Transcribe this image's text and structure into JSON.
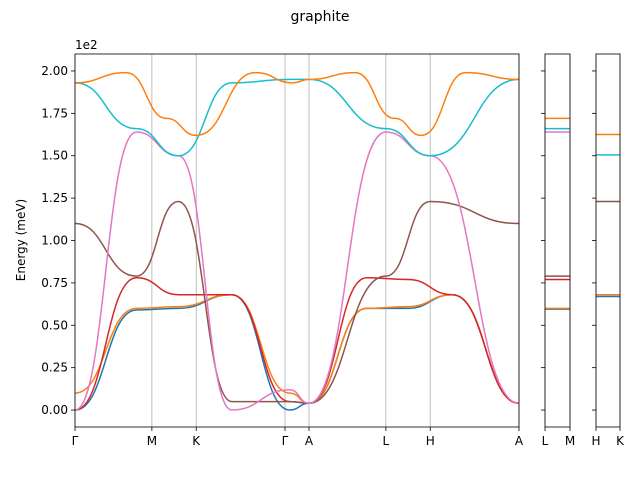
{
  "chart_data": {
    "type": "line",
    "title": "graphite",
    "ylabel": "Energy (meV)",
    "y_multiplier": "1e2",
    "ylim": [
      -0.1,
      2.1
    ],
    "yticks": [
      0.0,
      0.25,
      0.5,
      0.75,
      1.0,
      1.25,
      1.5,
      1.75,
      2.0
    ],
    "ytick_labels": [
      "0.00",
      "0.25",
      "0.50",
      "0.75",
      "1.00",
      "1.25",
      "1.50",
      "1.75",
      "2.00"
    ],
    "grid": "vertical lines at high-symmetry points",
    "panels": [
      {
        "segments": [
          {
            "from": "Γ",
            "to": "M",
            "weight": 0.1719
          },
          {
            "from": "M",
            "to": "K",
            "weight": 0.0992
          },
          {
            "from": "K",
            "to": "Γ",
            "weight": 0.1985
          },
          {
            "from": "Γ",
            "to": "A",
            "weight": 0.0536
          },
          {
            "from": "A",
            "to": "L",
            "weight": 0.1719
          },
          {
            "from": "L",
            "to": "H",
            "weight": 0.0992
          },
          {
            "from": "H",
            "to": "A",
            "weight": 0.1985
          }
        ],
        "tick_labels": [
          "Γ",
          "M",
          "K",
          "Γ",
          "A",
          "L",
          "H",
          "A"
        ],
        "bands": [
          {
            "color": "#1f77b4",
            "values": [
              [
                0.0,
                0.59,
                0.6,
                0.68,
                0.0,
                0.04
              ],
              [
                0.04,
                0.6,
                0.6,
                0.68,
                0.04
              ]
            ]
          },
          {
            "color": "#ff7f0e",
            "values": [
              [
                0.1,
                0.6,
                0.61,
                0.68,
                0.1,
                0.04
              ],
              [
                0.04,
                0.6,
                0.61,
                0.68,
                0.04
              ]
            ]
          },
          {
            "color": "#d62728",
            "values": [
              [
                0.0,
                0.78,
                0.68,
                0.68,
                0.05,
                0.04
              ],
              [
                0.04,
                0.78,
                0.77,
                0.68,
                0.04
              ]
            ]
          },
          {
            "color": "#8c564b",
            "values": [
              [
                1.1,
                0.79,
                1.23,
                0.05,
                0.05,
                0.04
              ],
              [
                0.04,
                0.79,
                1.23,
                1.1
              ]
            ]
          },
          {
            "color": "#e377c2",
            "values": [
              [
                0.0,
                1.64,
                1.5,
                0.0,
                0.12,
                0.04
              ],
              [
                0.04,
                1.64,
                1.5,
                0.04
              ]
            ]
          },
          {
            "color": "#17becf",
            "values": [
              [
                1.93,
                1.66,
                1.5,
                1.93,
                1.95,
                1.95
              ],
              [
                1.95,
                1.66,
                1.5,
                1.95
              ]
            ]
          },
          {
            "color": "#ff7f0e",
            "values": [
              [
                1.93,
                1.99,
                1.72,
                1.62,
                1.99,
                1.93,
                1.95
              ],
              [
                1.95,
                1.99,
                1.72,
                1.62,
                1.99,
                1.95
              ]
            ]
          }
        ]
      },
      {
        "tick_labels": [
          "L",
          "M"
        ],
        "levels": [
          {
            "color": "#1f77b4",
            "y": 0.595
          },
          {
            "color": "#ff7f0e",
            "y": 0.6
          },
          {
            "color": "#d62728",
            "y": 0.77
          },
          {
            "color": "#8c564b",
            "y": 0.79
          },
          {
            "color": "#e377c2",
            "y": 1.64
          },
          {
            "color": "#17becf",
            "y": 1.66
          },
          {
            "color": "#ff7f0e",
            "y": 1.72
          }
        ]
      },
      {
        "tick_labels": [
          "H",
          "K"
        ],
        "levels": [
          {
            "color": "#1f77b4",
            "y": 0.67
          },
          {
            "color": "#ff7f0e",
            "y": 0.68
          },
          {
            "color": "#8c564b",
            "y": 1.23
          },
          {
            "color": "#17becf",
            "y": 1.505
          },
          {
            "color": "#ff7f0e",
            "y": 1.625
          }
        ]
      }
    ]
  }
}
